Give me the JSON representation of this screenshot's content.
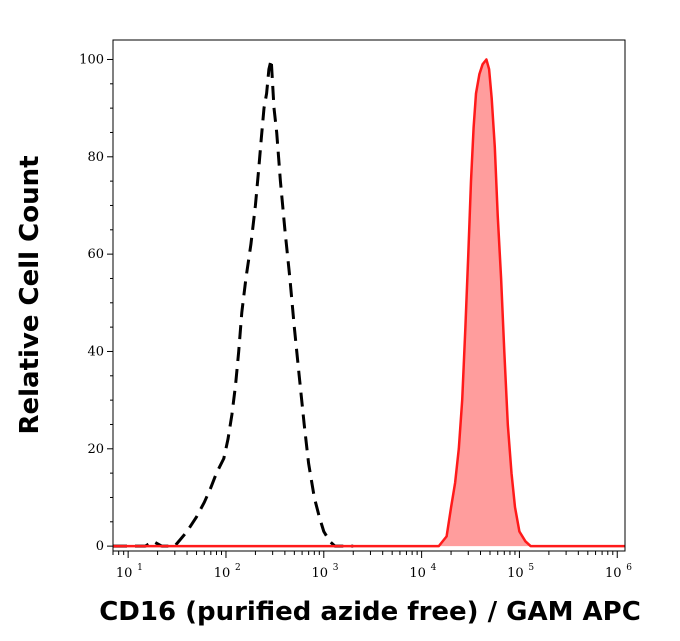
{
  "chart_data": {
    "type": "area",
    "title": "",
    "xlabel": "CD16 (purified azide free) / GAM APC",
    "ylabel": "Relative Cell Count",
    "x_scale": "log",
    "xlim": [
      7,
      1200000
    ],
    "ylim": [
      -1,
      104
    ],
    "x_ticks": [
      {
        "value": 10,
        "base": "10",
        "exp": "1"
      },
      {
        "value": 100,
        "base": "10",
        "exp": "2"
      },
      {
        "value": 1000,
        "base": "10",
        "exp": "3"
      },
      {
        "value": 10000,
        "base": "10",
        "exp": "4"
      },
      {
        "value": 100000,
        "base": "10",
        "exp": "5"
      },
      {
        "value": 1000000,
        "base": "10",
        "exp": "6"
      }
    ],
    "y_ticks": [
      {
        "value": 0,
        "label": "0"
      },
      {
        "value": 20,
        "label": "20"
      },
      {
        "value": 40,
        "label": "40"
      },
      {
        "value": 60,
        "label": "60"
      },
      {
        "value": 80,
        "label": "80"
      },
      {
        "value": 100,
        "label": "100"
      }
    ],
    "grid": false,
    "legend": "none",
    "series": [
      {
        "style": "dashed",
        "color": "#000000",
        "fill": "none",
        "points": [
          [
            7,
            0
          ],
          [
            15,
            0
          ],
          [
            18,
            1
          ],
          [
            22,
            0
          ],
          [
            30,
            0
          ],
          [
            40,
            3
          ],
          [
            50,
            6
          ],
          [
            60,
            9
          ],
          [
            70,
            12
          ],
          [
            80,
            15
          ],
          [
            95,
            18
          ],
          [
            105,
            22
          ],
          [
            115,
            27
          ],
          [
            125,
            33
          ],
          [
            135,
            40
          ],
          [
            145,
            48
          ],
          [
            160,
            55
          ],
          [
            180,
            62
          ],
          [
            200,
            70
          ],
          [
            215,
            77
          ],
          [
            230,
            84
          ],
          [
            245,
            90
          ],
          [
            260,
            93
          ],
          [
            275,
            98
          ],
          [
            290,
            100
          ],
          [
            310,
            90
          ],
          [
            330,
            85
          ],
          [
            360,
            75
          ],
          [
            400,
            65
          ],
          [
            450,
            55
          ],
          [
            500,
            45
          ],
          [
            560,
            35
          ],
          [
            630,
            25
          ],
          [
            700,
            17
          ],
          [
            800,
            10
          ],
          [
            900,
            6
          ],
          [
            1000,
            3
          ],
          [
            1150,
            1
          ],
          [
            1300,
            0
          ],
          [
            2000,
            0
          ]
        ]
      },
      {
        "style": "solid",
        "color": "#ff1a1a",
        "fill": "#ff9d9d",
        "points": [
          [
            7,
            0
          ],
          [
            10000,
            0
          ],
          [
            15000,
            0
          ],
          [
            18000,
            2
          ],
          [
            20000,
            8
          ],
          [
            22000,
            13
          ],
          [
            24000,
            20
          ],
          [
            26000,
            30
          ],
          [
            28000,
            45
          ],
          [
            30000,
            60
          ],
          [
            32000,
            75
          ],
          [
            34000,
            86
          ],
          [
            36000,
            93
          ],
          [
            39000,
            97
          ],
          [
            42000,
            99
          ],
          [
            46000,
            100
          ],
          [
            49000,
            98
          ],
          [
            52000,
            92
          ],
          [
            56000,
            82
          ],
          [
            60000,
            68
          ],
          [
            65000,
            55
          ],
          [
            70000,
            40
          ],
          [
            76000,
            25
          ],
          [
            83000,
            15
          ],
          [
            90000,
            8
          ],
          [
            100000,
            3
          ],
          [
            115000,
            1
          ],
          [
            130000,
            0
          ],
          [
            1200000,
            0
          ]
        ]
      }
    ]
  }
}
